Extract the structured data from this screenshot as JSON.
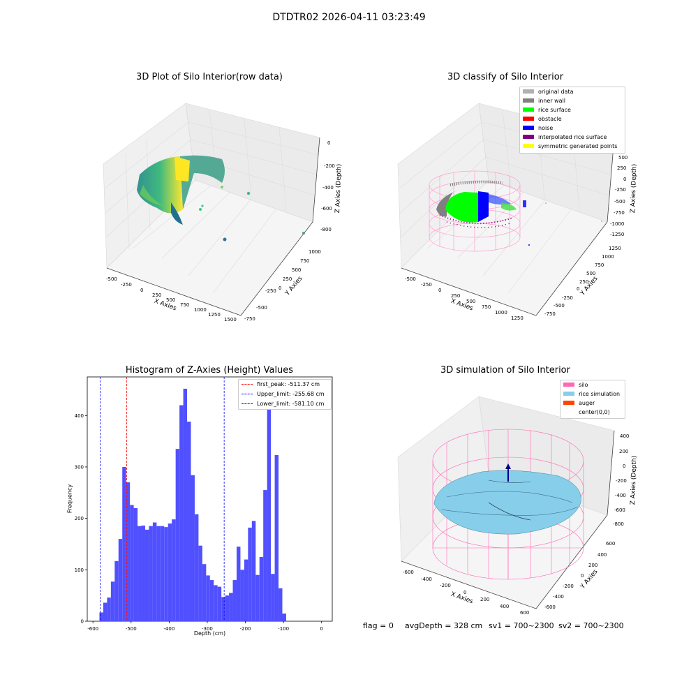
{
  "suptitle": "DTDTR02 2026-04-11 03:23:49",
  "panels": {
    "raw": {
      "title": "3D Plot of Silo Interior(row data)",
      "xlabel": "X Axies",
      "ylabel": "Y Axies",
      "zlabel": "Z Axies (Depth)",
      "xticks": [
        "-500",
        "-250",
        "0",
        "250",
        "500",
        "750",
        "1000",
        "1250",
        "1500"
      ],
      "yticks": [
        "-750",
        "-500",
        "-250",
        "0",
        "250",
        "500",
        "750",
        "1000"
      ],
      "zticks": [
        "0",
        "-200",
        "-400",
        "-600",
        "-800"
      ]
    },
    "classify": {
      "title": "3D classify of Silo Interior",
      "xlabel": "X Axies",
      "ylabel": "Y Axies",
      "zlabel": "Z Axies (Depth)",
      "xticks": [
        "-500",
        "-250",
        "0",
        "250",
        "500",
        "750",
        "1000",
        "1250"
      ],
      "yticks": [
        "-750",
        "-500",
        "-250",
        "0",
        "250",
        "500",
        "750",
        "1000",
        "1250"
      ],
      "zticks": [
        "500",
        "250",
        "0",
        "-250",
        "-500",
        "-750",
        "-1000",
        "-1250"
      ],
      "legend": [
        {
          "label": "original data",
          "color": "#b0b0b0"
        },
        {
          "label": "inner wall",
          "color": "#808080"
        },
        {
          "label": "rice surface",
          "color": "#00ff00"
        },
        {
          "label": "obstacle",
          "color": "#ff0000"
        },
        {
          "label": "noise",
          "color": "#0000ff"
        },
        {
          "label": "interpolated rice surface",
          "color": "#800080"
        },
        {
          "label": "symmetric generated points",
          "color": "#ffff00"
        }
      ]
    },
    "simulation": {
      "title": "3D simulation of Silo Interior",
      "xlabel": "X Axies",
      "ylabel": "Y Axies",
      "zlabel": "Z Axies (Depth)",
      "xticks": [
        "-600",
        "-400",
        "-200",
        "0",
        "200",
        "400",
        "600"
      ],
      "yticks": [
        "-600",
        "-400",
        "-200",
        "0",
        "200",
        "400",
        "600"
      ],
      "zticks": [
        "400",
        "200",
        "0",
        "-200",
        "-400",
        "-600",
        "-800"
      ],
      "legend": [
        {
          "label": "silo",
          "color": "#ff69b4"
        },
        {
          "label": "rice simulation",
          "color": "#87ceeb"
        },
        {
          "label": "auger",
          "color": "#ff4500"
        },
        {
          "label": "center(0,0)",
          "color": ""
        }
      ]
    }
  },
  "chart_data": {
    "type": "bar",
    "title": "Histogram of Z-Axies (Height) Values",
    "xlabel": "Depth (cm)",
    "ylabel": "Frequency",
    "xlim": [
      -615,
      28
    ],
    "ylim": [
      0,
      475
    ],
    "xticks": [
      -600,
      -500,
      -400,
      -300,
      -200,
      -100,
      0
    ],
    "yticks": [
      0,
      100,
      200,
      300,
      400
    ],
    "bar_color": "#5050ff",
    "bin_start": -583,
    "bin_width": 10,
    "values": [
      17,
      36,
      46,
      77,
      117,
      160,
      300,
      270,
      226,
      220,
      185,
      186,
      178,
      185,
      192,
      185,
      185,
      183,
      190,
      198,
      335,
      420,
      452,
      388,
      284,
      208,
      147,
      111,
      89,
      80,
      70,
      67,
      47,
      50,
      55,
      80,
      145,
      100,
      120,
      182,
      195,
      90,
      125,
      255,
      420,
      92,
      323,
      64,
      15
    ],
    "lines": [
      {
        "label": "first_peak: -511.37 cm",
        "x": -511.37,
        "color": "#ff0000"
      },
      {
        "label": "Upper_limit: -255.68 cm",
        "x": -255.68,
        "color": "#0000ff"
      },
      {
        "label": "Lower_limit: -581.10 cm",
        "x": -581.1,
        "color": "#0000ff"
      }
    ]
  },
  "status": {
    "flag": "flag = 0",
    "avg_depth": "avgDepth = 328 cm",
    "sv1": "sv1 = 700~2300",
    "sv2": "sv2 = 700~2300"
  }
}
